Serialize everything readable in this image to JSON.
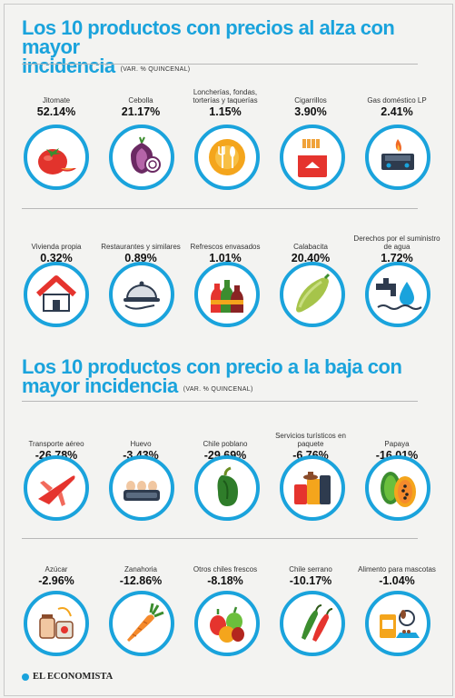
{
  "section_up": {
    "title_line1": "Los 10 productos con precios al alza con mayor",
    "title_line2": "incidencia",
    "subtitle": "(VAR. % QUINCENAL)",
    "items": [
      {
        "name": "Jitomate",
        "value": "52.14%",
        "icon": "tomato-icon"
      },
      {
        "name": "Cebolla",
        "value": "21.17%",
        "icon": "onion-icon"
      },
      {
        "name": "Loncherías, fondas, torterías y taquerías",
        "value": "1.15%",
        "icon": "plate-cutlery-icon"
      },
      {
        "name": "Cigarrillos",
        "value": "3.90%",
        "icon": "cigarettes-icon"
      },
      {
        "name": "Gas doméstico LP",
        "value": "2.41%",
        "icon": "gas-stove-icon"
      },
      {
        "name": "Vivienda propia",
        "value": "0.32%",
        "icon": "house-icon"
      },
      {
        "name": "Restaurantes y similares",
        "value": "0.89%",
        "icon": "cloche-icon"
      },
      {
        "name": "Refrescos envasados",
        "value": "1.01%",
        "icon": "soda-bottles-icon"
      },
      {
        "name": "Calabacita",
        "value": "20.40%",
        "icon": "zucchini-icon"
      },
      {
        "name": "Derechos por el suministro de agua",
        "value": "1.72%",
        "icon": "water-tap-icon"
      }
    ]
  },
  "section_down": {
    "title_line1": "Los 10 productos con precio a la baja con",
    "title_line2": "mayor incidencia",
    "subtitle": "(VAR. % QUINCENAL)",
    "items": [
      {
        "name": "Transporte aéreo",
        "value": "-26.78%",
        "icon": "airplane-icon"
      },
      {
        "name": "Huevo",
        "value": "-3.43%",
        "icon": "egg-carton-icon"
      },
      {
        "name": "Chile poblano",
        "value": "-29.69%",
        "icon": "poblano-pepper-icon"
      },
      {
        "name": "Servicios turísticos en paquete",
        "value": "-6.76%",
        "icon": "luggage-icon"
      },
      {
        "name": "Papaya",
        "value": "-16.01%",
        "icon": "papaya-icon"
      },
      {
        "name": "Azúcar",
        "value": "-2.96%",
        "icon": "sugar-jars-icon"
      },
      {
        "name": "Zanahoria",
        "value": "-12.86%",
        "icon": "carrot-icon"
      },
      {
        "name": "Otros chiles frescos",
        "value": "-8.18%",
        "icon": "mixed-peppers-icon"
      },
      {
        "name": "Chile serrano",
        "value": "-10.17%",
        "icon": "serrano-pepper-icon"
      },
      {
        "name": "Alimento para mascotas",
        "value": "-1.04%",
        "icon": "pet-food-icon"
      }
    ]
  },
  "brand": {
    "name": "EL ECONOMISTA"
  },
  "colors": {
    "accent": "#1aa3dc",
    "background": "#f3f3f1",
    "text": "#111111"
  }
}
